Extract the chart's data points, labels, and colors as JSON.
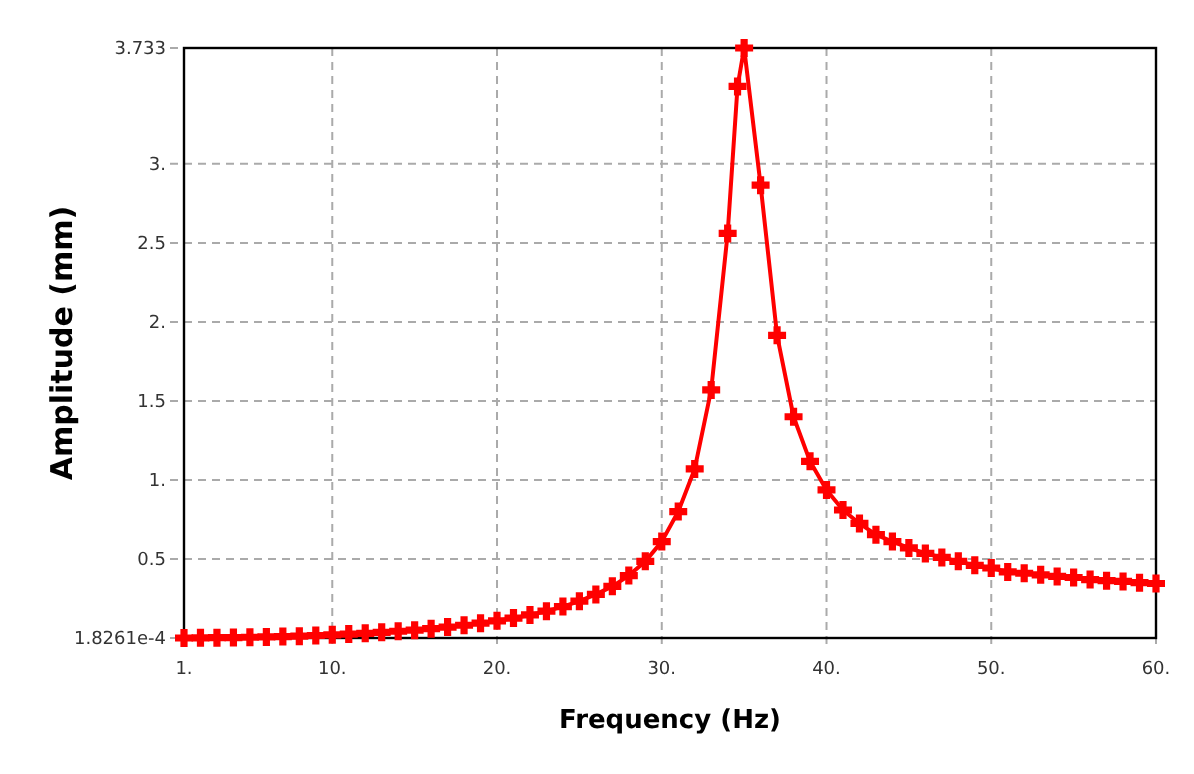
{
  "chart_data": {
    "type": "line",
    "xlabel": "Frequency (Hz)",
    "ylabel": "Amplitude (mm)",
    "xlim": [
      1,
      60
    ],
    "ylim": [
      0.00018261,
      3.733
    ],
    "xticks": [
      {
        "value": 1,
        "label": "1."
      },
      {
        "value": 10,
        "label": "10."
      },
      {
        "value": 20,
        "label": "20."
      },
      {
        "value": 30,
        "label": "30."
      },
      {
        "value": 40,
        "label": "40."
      },
      {
        "value": 50,
        "label": "50."
      },
      {
        "value": 60,
        "label": "60."
      }
    ],
    "yticks": [
      {
        "value": 0.00018261,
        "label": "1.8261e-4"
      },
      0.5,
      {
        "value": 1,
        "label": "1."
      },
      1.5,
      {
        "value": 2,
        "label": "2."
      },
      2.5,
      {
        "value": 3,
        "label": "3."
      },
      3.733
    ],
    "grid": true,
    "marker": "cross",
    "line_style": "solid",
    "x": [
      1,
      2,
      3,
      4,
      5,
      6,
      7,
      8,
      9,
      10,
      11,
      12,
      13,
      14,
      15,
      16,
      17,
      18,
      19,
      20,
      21,
      22,
      23,
      24,
      25,
      26,
      27,
      28,
      29,
      30,
      31,
      32,
      33,
      34,
      34.6,
      35,
      36,
      37,
      38,
      39,
      40,
      41,
      42,
      43,
      44,
      45,
      46,
      47,
      48,
      49,
      50,
      51,
      52,
      53,
      54,
      55,
      56,
      57,
      58,
      59,
      60
    ],
    "series": [
      {
        "color": "#ff0000",
        "values": [
          0.00018261,
          0.001,
          0.002,
          0.003,
          0.005,
          0.007,
          0.009,
          0.012,
          0.016,
          0.02,
          0.025,
          0.03,
          0.036,
          0.043,
          0.05,
          0.059,
          0.069,
          0.081,
          0.094,
          0.109,
          0.126,
          0.146,
          0.17,
          0.199,
          0.233,
          0.276,
          0.327,
          0.395,
          0.485,
          0.61,
          0.8,
          1.07,
          1.57,
          2.56,
          3.49,
          3.733,
          2.865,
          1.915,
          1.4,
          1.118,
          0.937,
          0.81,
          0.725,
          0.654,
          0.61,
          0.57,
          0.535,
          0.51,
          0.485,
          0.46,
          0.443,
          0.418,
          0.41,
          0.4,
          0.39,
          0.383,
          0.37,
          0.363,
          0.358,
          0.35,
          0.345
        ]
      }
    ]
  }
}
